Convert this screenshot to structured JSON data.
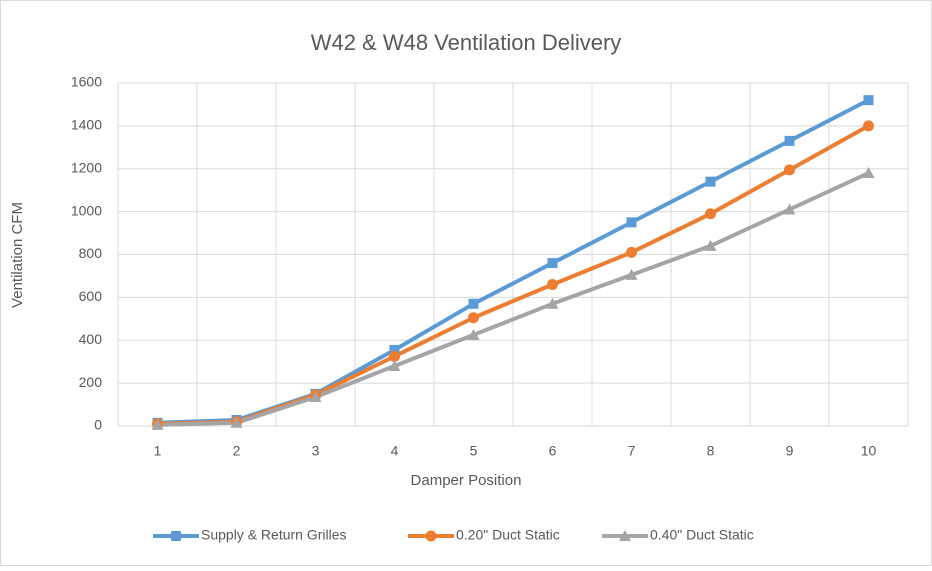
{
  "chart_data": {
    "type": "line",
    "title": "W42 & W48 Ventilation Delivery",
    "x_label": "Damper Position",
    "y_label": "Ventilation CFM",
    "categories": [
      1,
      2,
      3,
      4,
      5,
      6,
      7,
      8,
      9,
      10
    ],
    "series": [
      {
        "name": "Supply & Return Grilles",
        "color": "#5b9bd5",
        "marker": "square",
        "values": [
          15,
          28,
          150,
          355,
          570,
          760,
          950,
          1140,
          1330,
          1520
        ]
      },
      {
        "name": "0.20\" Duct Static",
        "color": "#ed7d31",
        "marker": "circle",
        "values": [
          10,
          20,
          145,
          325,
          505,
          660,
          810,
          990,
          1195,
          1400
        ]
      },
      {
        "name": "0.40\" Duct Static",
        "color": "#a5a5a5",
        "marker": "triangle",
        "values": [
          5,
          15,
          135,
          280,
          425,
          570,
          705,
          840,
          1010,
          1180
        ]
      }
    ],
    "ylim": [
      0,
      1600
    ],
    "yticks": [
      0,
      200,
      400,
      600,
      800,
      1000,
      1200,
      1400,
      1600
    ],
    "grid": true,
    "legend": "bottom"
  }
}
